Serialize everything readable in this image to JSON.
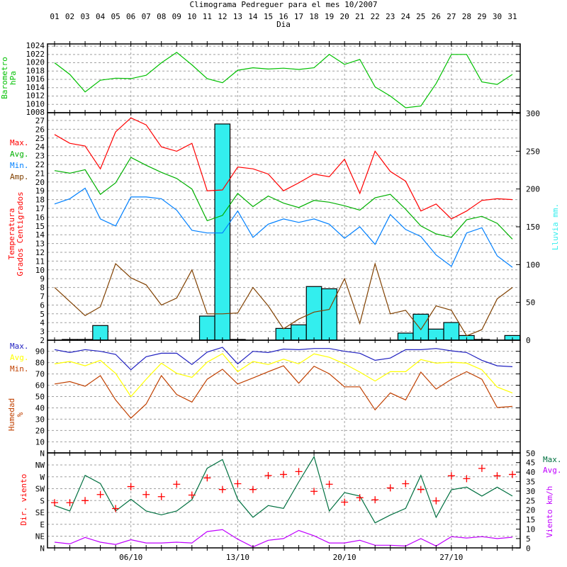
{
  "title": "Climograma Pedreguer para el mes 10/2007",
  "x_axis_label": "Dia",
  "days": [
    "01",
    "02",
    "03",
    "04",
    "05",
    "06",
    "07",
    "08",
    "09",
    "10",
    "11",
    "12",
    "13",
    "14",
    "15",
    "16",
    "17",
    "18",
    "19",
    "20",
    "21",
    "22",
    "23",
    "24",
    "25",
    "26",
    "27",
    "28",
    "29",
    "30",
    "31"
  ],
  "week_labels": [
    {
      "day": 6,
      "label": "06/10"
    },
    {
      "day": 13,
      "label": "13/10"
    },
    {
      "day": 20,
      "label": "20/10"
    },
    {
      "day": 27,
      "label": "27/10"
    }
  ],
  "colors": {
    "barometer": "#00c000",
    "temp_max": "#ff0000",
    "temp_avg": "#00b000",
    "temp_min": "#0080ff",
    "temp_amp": "#804000",
    "rain": "#33eeee",
    "hum_max": "#2020c0",
    "hum_avg": "#ffff00",
    "hum_min": "#c04000",
    "wind_dir": "#ff0000",
    "wind_max": "#007040",
    "wind_avg": "#c000ff",
    "grid": "#a0a0a0"
  },
  "chart_data": [
    {
      "type": "line",
      "panel": "barometer",
      "ylabel": [
        "Barometro",
        "hPa"
      ],
      "ylim": [
        1008,
        1024
      ],
      "yticks": [
        "1024",
        "1022",
        "1020",
        "1018",
        "1016",
        "1014",
        "1012",
        "1010",
        "1008"
      ],
      "series": [
        {
          "name": "Presion",
          "values": [
            1020,
            1017.2,
            1013,
            1015.8,
            1016.3,
            1016.2,
            1017,
            1020,
            1022.5,
            1019.5,
            1016.2,
            1015.2,
            1018.2,
            1018.8,
            1018.5,
            1018.7,
            1018.4,
            1018.8,
            1022,
            1019.6,
            1020.8,
            1014.2,
            1012,
            1009.2,
            1009.6,
            1015,
            1022,
            1022,
            1015.4,
            1014.8,
            1017.2
          ]
        }
      ]
    },
    {
      "type": "line",
      "panel": "temperature",
      "ylabel": [
        "Temperatura",
        "Grados Centigrados"
      ],
      "ylim": [
        2,
        27
      ],
      "yticks": [
        "27",
        "26",
        "25",
        "24",
        "23",
        "22",
        "21",
        "20",
        "19",
        "18",
        "17",
        "16",
        "15",
        "14",
        "13",
        "12",
        "11",
        "10",
        "9",
        "8",
        "7",
        "6",
        "5",
        "4",
        "3",
        "2"
      ],
      "legend": [
        "Max.",
        "Avg.",
        "Min.",
        "Amp."
      ],
      "series": [
        {
          "name": "Max.",
          "values": [
            25.4,
            24.4,
            24.1,
            21.5,
            25.7,
            27.3,
            26.5,
            24.0,
            23.5,
            24.4,
            19.0,
            19.1,
            21.7,
            21.5,
            20.9,
            19.0,
            19.9,
            20.9,
            20.6,
            22.6,
            18.7,
            23.5,
            21.2,
            20.1,
            16.7,
            17.5,
            15.8,
            16.7,
            17.9,
            18.1,
            18.0
          ]
        },
        {
          "name": "Avg.",
          "values": [
            21.3,
            21.0,
            21.4,
            18.6,
            19.9,
            22.8,
            21.9,
            21.1,
            20.4,
            19.2,
            15.6,
            16.2,
            18.7,
            17.2,
            18.4,
            17.6,
            17.1,
            17.9,
            17.7,
            17.3,
            16.8,
            18.2,
            18.6,
            16.9,
            15.0,
            14.1,
            13.7,
            15.7,
            16.1,
            15.3,
            13.5
          ]
        },
        {
          "name": "Min.",
          "values": [
            17.5,
            18.1,
            19.3,
            15.8,
            15.0,
            18.3,
            18.3,
            18.1,
            16.8,
            14.5,
            14.2,
            14.2,
            16.7,
            13.7,
            15.2,
            15.8,
            15.4,
            15.8,
            15.2,
            13.6,
            14.9,
            12.9,
            16.3,
            14.6,
            13.8,
            11.7,
            10.4,
            14.2,
            14.8,
            11.6,
            10.3
          ]
        },
        {
          "name": "Amp.",
          "values": [
            8.0,
            6.4,
            4.8,
            5.8,
            10.7,
            9.1,
            8.3,
            6.0,
            6.8,
            10.0,
            5.0,
            5.0,
            5.1,
            8.0,
            5.9,
            3.3,
            4.4,
            5.2,
            5.5,
            9.0,
            3.9,
            10.7,
            5.0,
            5.4,
            3.2,
            5.9,
            5.4,
            2.5,
            3.2,
            6.7,
            8.0
          ]
        }
      ]
    },
    {
      "type": "bar",
      "panel": "rain",
      "ylabel": "Lluvia mm.",
      "ylim": [
        0,
        300
      ],
      "yticks": [
        "300",
        "250",
        "200",
        "150",
        "100",
        "50",
        "0"
      ],
      "values": [
        0,
        1,
        1,
        19.4,
        0,
        0,
        0,
        0,
        0,
        0,
        31.9,
        286,
        1,
        0,
        0,
        15.6,
        20.3,
        71,
        68,
        0,
        0,
        0,
        0,
        9.4,
        34.4,
        14.7,
        23.4,
        6.2,
        1,
        0,
        6.2
      ]
    },
    {
      "type": "line",
      "panel": "humidity",
      "ylabel": [
        "Humedad",
        "%"
      ],
      "ylim": [
        0,
        100
      ],
      "yticks": [
        "90",
        "80",
        "70",
        "60",
        "50",
        "40",
        "30",
        "20",
        "10"
      ],
      "legend": [
        "Max.",
        "Avg.",
        "Min."
      ],
      "series": [
        {
          "name": "Max.",
          "values": [
            91.5,
            88.9,
            91.5,
            90,
            87.3,
            73.7,
            85.2,
            88.3,
            88.3,
            78.3,
            89.3,
            93.5,
            78.9,
            90,
            88.9,
            92,
            91.4,
            92.5,
            92.5,
            90,
            88.3,
            82,
            84,
            91.4,
            91.4,
            92.5,
            90.4,
            88.9,
            82,
            77.2,
            76.4
          ]
        },
        {
          "name": "Avg.",
          "values": [
            78.9,
            81,
            77.2,
            82,
            70.5,
            50,
            65.3,
            79.5,
            70.5,
            67,
            80.4,
            87.9,
            72,
            81,
            78.3,
            83,
            78.9,
            87.7,
            84.7,
            78.9,
            71.6,
            63.7,
            72,
            72,
            82.7,
            79.5,
            80.4,
            79.5,
            73.7,
            58.4,
            53.2
          ]
        },
        {
          "name": "Min.",
          "values": [
            61.1,
            63.2,
            59.1,
            68.5,
            47,
            30.9,
            43.4,
            68.5,
            51.8,
            45.1,
            65.3,
            74.1,
            61.1,
            66.4,
            72,
            77.2,
            61.8,
            76.8,
            70.1,
            58.6,
            58.6,
            38.2,
            53.2,
            47,
            71.6,
            56.6,
            65.3,
            72,
            65.3,
            40.3,
            41.3
          ]
        }
      ]
    },
    {
      "type": "scatter",
      "panel": "wind",
      "ylabel_left": "Dir. viento",
      "ylabel_right": "Viento km/h",
      "dir_ticks": [
        "N",
        "NW",
        "W",
        "SW",
        "S",
        "SE",
        "E",
        "NE",
        "N"
      ],
      "speed_ticks": [
        "50",
        "45",
        "40",
        "35",
        "30",
        "25",
        "20",
        "15",
        "10",
        "5",
        "0"
      ],
      "speed_ylim": [
        0,
        50
      ],
      "dir_ylim": [
        0,
        360
      ],
      "legend": [
        "Max.",
        "Avg."
      ],
      "direction_deg": [
        172,
        172,
        180,
        203,
        150,
        233,
        203,
        195,
        242,
        201,
        266,
        222,
        244,
        222,
        275,
        279,
        290,
        215,
        242,
        174,
        191,
        183,
        228,
        244,
        222,
        179,
        274,
        263,
        302,
        274,
        279
      ],
      "series": [
        {
          "name": "Max.",
          "values": [
            22.4,
            19.5,
            38.3,
            34,
            19.5,
            25.7,
            19.5,
            17.5,
            19.5,
            25.5,
            42,
            46.6,
            25.7,
            16.2,
            22.4,
            20.9,
            34.8,
            48.1,
            19.5,
            29.2,
            27.4,
            13.3,
            17.4,
            20.9,
            38.3,
            16.2,
            30.7,
            32.1,
            27.4,
            32.1,
            27.4
          ]
        },
        {
          "name": "Avg.",
          "values": [
            3.1,
            2.2,
            5.6,
            3.1,
            1.9,
            4.4,
            2.7,
            2.7,
            3.1,
            2.7,
            8.7,
            9.7,
            4.7,
            0.6,
            4.1,
            5.0,
            9.3,
            6.5,
            2.7,
            2.7,
            4.1,
            1.5,
            1.5,
            1.1,
            5.0,
            1.1,
            6.0,
            5.3,
            6.0,
            5.0,
            5.7
          ]
        }
      ]
    }
  ]
}
